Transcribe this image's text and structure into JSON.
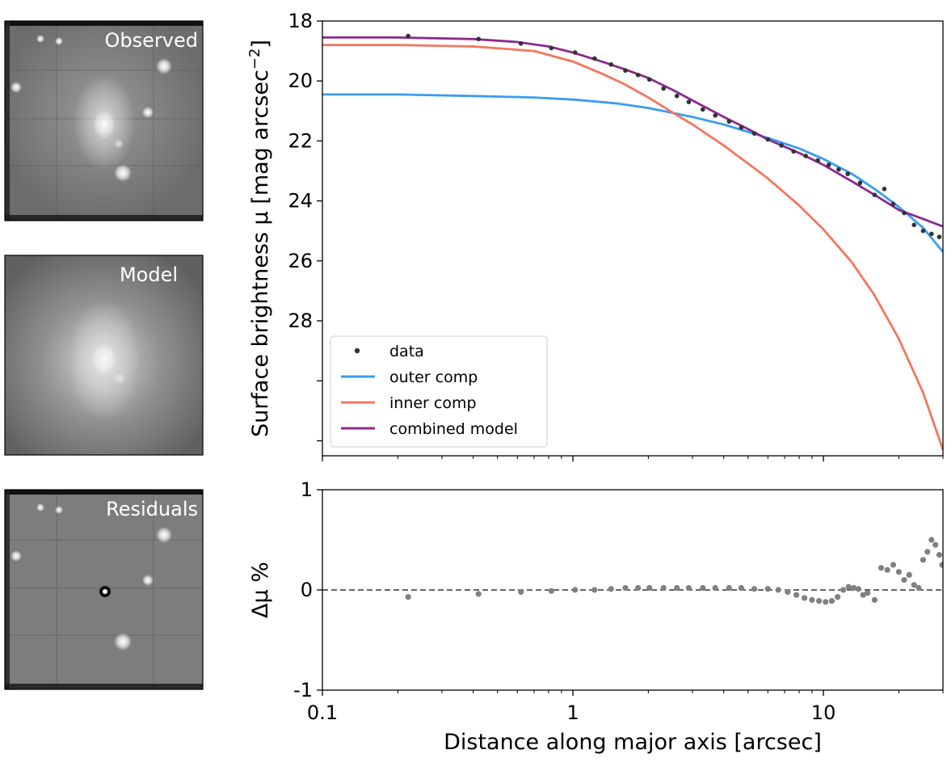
{
  "panels": [
    {
      "label": "Observed",
      "kind": "observed"
    },
    {
      "label": "Model",
      "kind": "model"
    },
    {
      "label": "Residuals",
      "kind": "residuals"
    }
  ],
  "chart_data": [
    {
      "type": "line",
      "ylabel": "Surface brightness μ [mag arcsec",
      "ylabel_unit_exponent": "−2",
      "xscale": "log",
      "xlim": [
        0.1,
        30
      ],
      "ylim": [
        18,
        32.5
      ],
      "y_inverted": true,
      "yticks": [
        "18",
        "20",
        "22",
        "24",
        "26",
        "28"
      ],
      "ytick_values": [
        18,
        20,
        22,
        24,
        26,
        28
      ],
      "legend_location": "lower-left",
      "series": [
        {
          "name": "data",
          "kind": "scatter",
          "color": "#333333",
          "x": [
            0.22,
            0.42,
            0.62,
            0.82,
            1.02,
            1.22,
            1.42,
            1.62,
            1.82,
            2.02,
            2.3,
            2.6,
            2.9,
            3.3,
            3.7,
            4.2,
            4.7,
            5.3,
            6.0,
            6.8,
            7.6,
            8.5,
            9.5,
            10.5,
            11.5,
            12.5,
            14.0,
            16.0,
            17.5,
            19.0,
            21.0,
            23.0,
            25.0,
            27.0,
            29.0
          ],
          "y": [
            18.5,
            18.6,
            18.75,
            18.9,
            19.05,
            19.25,
            19.45,
            19.65,
            19.8,
            19.95,
            20.25,
            20.5,
            20.7,
            20.95,
            21.15,
            21.35,
            21.55,
            21.75,
            21.95,
            22.15,
            22.35,
            22.5,
            22.65,
            22.8,
            22.95,
            23.1,
            23.4,
            23.8,
            23.6,
            24.1,
            24.4,
            24.8,
            25.0,
            25.1,
            25.2
          ]
        },
        {
          "name": "outer comp",
          "kind": "line",
          "color": "#3b9cf2",
          "x": [
            0.1,
            0.2,
            0.4,
            0.7,
            1.0,
            1.5,
            2.0,
            3.0,
            4.0,
            6.0,
            8.0,
            10.0,
            13.0,
            16.0,
            20.0,
            25.0,
            30.0
          ],
          "y": [
            20.45,
            20.45,
            20.5,
            20.55,
            20.62,
            20.75,
            20.9,
            21.2,
            21.45,
            21.9,
            22.25,
            22.6,
            23.1,
            23.6,
            24.2,
            24.9,
            25.7
          ]
        },
        {
          "name": "inner comp",
          "kind": "line",
          "color": "#f4765e",
          "x": [
            0.1,
            0.2,
            0.4,
            0.7,
            1.0,
            1.3,
            1.6,
            2.0,
            2.5,
            3.0,
            4.0,
            5.0,
            6.0,
            8.0,
            10.0,
            13.0,
            16.0,
            20.0,
            25.0,
            30.0
          ],
          "y": [
            18.8,
            18.8,
            18.85,
            19.0,
            19.35,
            19.75,
            20.1,
            20.55,
            21.05,
            21.45,
            22.15,
            22.75,
            23.25,
            24.15,
            24.95,
            26.05,
            27.15,
            28.6,
            30.4,
            32.3
          ]
        },
        {
          "name": "combined model",
          "kind": "line",
          "color": "#8b2a8e",
          "x": [
            0.1,
            0.2,
            0.4,
            0.6,
            0.8,
            1.0,
            1.3,
            1.6,
            2.0,
            2.5,
            3.0,
            4.0,
            5.0,
            6.0,
            8.0,
            10.0,
            13.0,
            16.0,
            20.0,
            25.0,
            30.0
          ],
          "y": [
            18.55,
            18.55,
            18.6,
            18.7,
            18.85,
            19.05,
            19.35,
            19.6,
            19.9,
            20.3,
            20.65,
            21.2,
            21.6,
            21.95,
            22.4,
            22.8,
            23.35,
            23.8,
            24.3,
            24.6,
            24.85
          ]
        }
      ]
    },
    {
      "type": "scatter",
      "ylabel": "Δμ %",
      "xlabel": "Distance along major axis [arcsec]",
      "xscale": "log",
      "xlim": [
        0.1,
        30
      ],
      "ylim": [
        -1,
        1
      ],
      "yticks": [
        "-1",
        "0",
        "1"
      ],
      "ytick_values": [
        -1,
        0,
        1
      ],
      "xticks": [
        "0.1",
        "1",
        "10"
      ],
      "xtick_values": [
        0.1,
        1,
        10
      ],
      "reference_line": 0,
      "series": [
        {
          "name": "",
          "color": "#808080",
          "x": [
            0.22,
            0.42,
            0.62,
            0.82,
            1.02,
            1.22,
            1.42,
            1.62,
            1.82,
            2.02,
            2.3,
            2.6,
            2.9,
            3.3,
            3.7,
            4.2,
            4.7,
            5.3,
            6.0,
            6.6,
            7.2,
            7.8,
            8.4,
            9.0,
            9.6,
            10.2,
            10.8,
            11.4,
            12.0,
            12.6,
            13.2,
            13.8,
            14.4,
            15.0,
            16.0,
            17.0,
            18.0,
            19.0,
            20.0,
            21.0,
            22.0,
            23.0,
            24.0,
            25.0,
            26.0,
            27.0,
            28.0,
            29.0,
            29.8
          ],
          "y": [
            -0.07,
            -0.04,
            -0.02,
            -0.01,
            0.0,
            0.0,
            0.01,
            0.02,
            0.02,
            0.02,
            0.02,
            0.02,
            0.02,
            0.02,
            0.02,
            0.02,
            0.02,
            0.01,
            0.01,
            0.0,
            -0.02,
            -0.05,
            -0.08,
            -0.1,
            -0.11,
            -0.12,
            -0.11,
            -0.07,
            0.0,
            0.03,
            0.02,
            0.01,
            -0.05,
            -0.03,
            -0.1,
            0.22,
            0.2,
            0.25,
            0.18,
            0.1,
            0.15,
            0.05,
            0.02,
            0.3,
            0.38,
            0.5,
            0.45,
            0.35,
            0.25
          ]
        }
      ]
    }
  ]
}
